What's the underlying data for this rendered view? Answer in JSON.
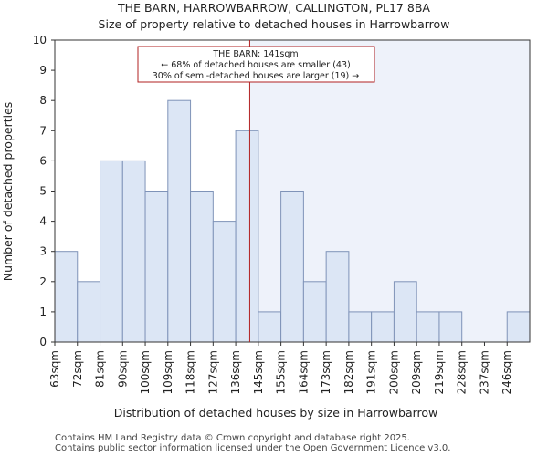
{
  "chart_data": {
    "type": "bar",
    "title": "THE BARN, HARROWBARROW, CALLINGTON, PL17 8BA",
    "subtitle": "Size of property relative to detached houses in Harrowbarrow",
    "xlabel": "Distribution of detached houses by size in Harrowbarrow",
    "ylabel": "Number of detached properties",
    "categories": [
      "63sqm",
      "72sqm",
      "81sqm",
      "90sqm",
      "100sqm",
      "109sqm",
      "118sqm",
      "127sqm",
      "136sqm",
      "145sqm",
      "155sqm",
      "164sqm",
      "173sqm",
      "182sqm",
      "191sqm",
      "200sqm",
      "209sqm",
      "219sqm",
      "228sqm",
      "237sqm",
      "246sqm"
    ],
    "values": [
      3,
      2,
      6,
      6,
      5,
      8,
      5,
      4,
      7,
      1,
      5,
      2,
      3,
      1,
      1,
      2,
      1,
      1,
      0,
      0,
      1
    ],
    "ylim": [
      0,
      10
    ],
    "yticks": [
      0,
      1,
      2,
      3,
      4,
      5,
      6,
      7,
      8,
      9,
      10
    ],
    "marker": {
      "value_sqm": 141,
      "bin_position": 8.62,
      "color": "#b22222"
    },
    "annotation": {
      "line1": "THE BARN: 141sqm",
      "line2": "← 68% of detached houses are smaller (43)",
      "line3": "30% of semi-detached houses are larger (19) →"
    },
    "colors": {
      "bar_fill": "#dce6f5",
      "bar_stroke": "#7f93b8",
      "highlight_bg": "#eef2fa"
    }
  },
  "footer": {
    "line1": "Contains HM Land Registry data © Crown copyright and database right 2025.",
    "line2": "Contains public sector information licensed under the Open Government Licence v3.0."
  }
}
